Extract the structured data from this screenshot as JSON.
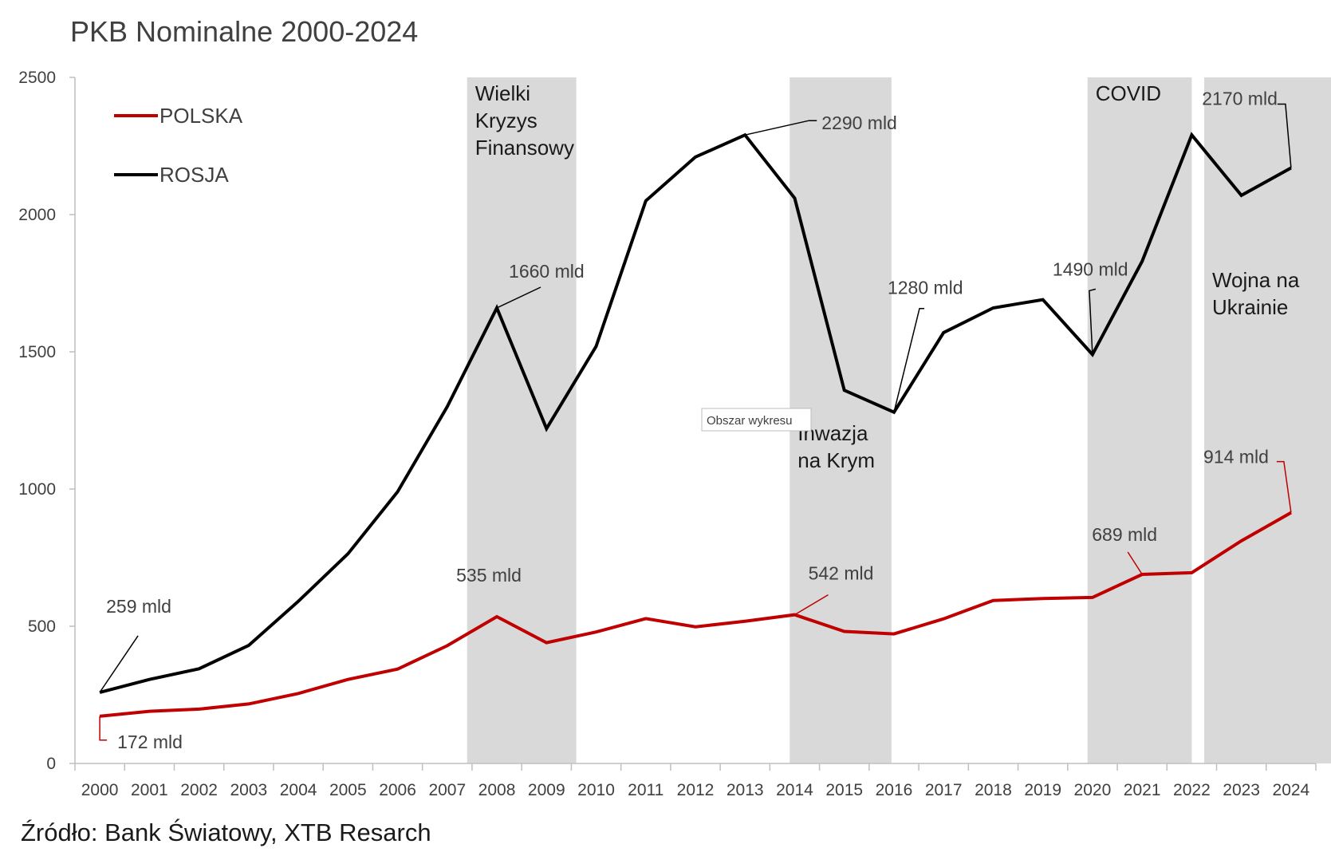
{
  "title": "PKB Nominalne 2000-2024",
  "source": "Źródło: Bank Światowy, XTB Resarch",
  "tooltip": "Obszar wykresu",
  "colors": {
    "polska": "#c00000",
    "rosja": "#000000",
    "band": "#d9d9d9"
  },
  "chart_data": {
    "type": "line",
    "x": [
      "2000",
      "2001",
      "2002",
      "2003",
      "2004",
      "2005",
      "2006",
      "2007",
      "2008",
      "2009",
      "2010",
      "2011",
      "2012",
      "2013",
      "2014",
      "2015",
      "2016",
      "2017",
      "2018",
      "2019",
      "2020",
      "2021",
      "2022",
      "2023",
      "2024"
    ],
    "ylim": [
      0,
      2500
    ],
    "yticks": [
      0,
      500,
      1000,
      1500,
      2000,
      2500
    ],
    "grid": false,
    "legend_position": "top-left",
    "series": [
      {
        "name": "POLSKA",
        "color": "#c00000",
        "values": [
          172,
          190,
          198,
          217,
          255,
          306,
          344,
          429,
          535,
          440,
          479,
          528,
          498,
          518,
          542,
          481,
          472,
          527,
          594,
          601,
          605,
          689,
          695,
          811,
          914
        ]
      },
      {
        "name": "ROSJA",
        "color": "#000000",
        "values": [
          259,
          306,
          345,
          430,
          591,
          764,
          990,
          1300,
          1660,
          1220,
          1520,
          2050,
          2210,
          2290,
          2060,
          1360,
          1280,
          1570,
          1660,
          1690,
          1490,
          1830,
          2290,
          2070,
          2170
        ]
      }
    ],
    "bands": [
      {
        "label_lines": [
          "Wielki",
          "Kryzys",
          "Finansowy"
        ],
        "from": 2007.4,
        "to": 2009.6
      },
      {
        "label_lines": [
          "Inwazja",
          "na Krym"
        ],
        "from": 2013.9,
        "to": 2015.95
      },
      {
        "label_lines": [
          "COVID"
        ],
        "from": 2019.9,
        "to": 2022.0
      },
      {
        "label_lines": [
          "Wojna na",
          "Ukrainie"
        ],
        "from": 2022.25,
        "to": 2024.9
      }
    ],
    "annotations": [
      {
        "text": "259 mld",
        "series": "ROSJA",
        "x": "2000"
      },
      {
        "text": "172 mld",
        "series": "POLSKA",
        "x": "2000"
      },
      {
        "text": "1660 mld",
        "series": "ROSJA",
        "x": "2008"
      },
      {
        "text": "535 mld",
        "series": "POLSKA",
        "x": "2008"
      },
      {
        "text": "2290 mld",
        "series": "ROSJA",
        "x": "2013"
      },
      {
        "text": "542 mld",
        "series": "POLSKA",
        "x": "2014"
      },
      {
        "text": "1280 mld",
        "series": "ROSJA",
        "x": "2016"
      },
      {
        "text": "1490 mld",
        "series": "ROSJA",
        "x": "2020"
      },
      {
        "text": "689 mld",
        "series": "POLSKA",
        "x": "2021"
      },
      {
        "text": "2170 mld",
        "series": "ROSJA",
        "x": "2024"
      },
      {
        "text": "914 mld",
        "series": "POLSKA",
        "x": "2024"
      }
    ]
  }
}
